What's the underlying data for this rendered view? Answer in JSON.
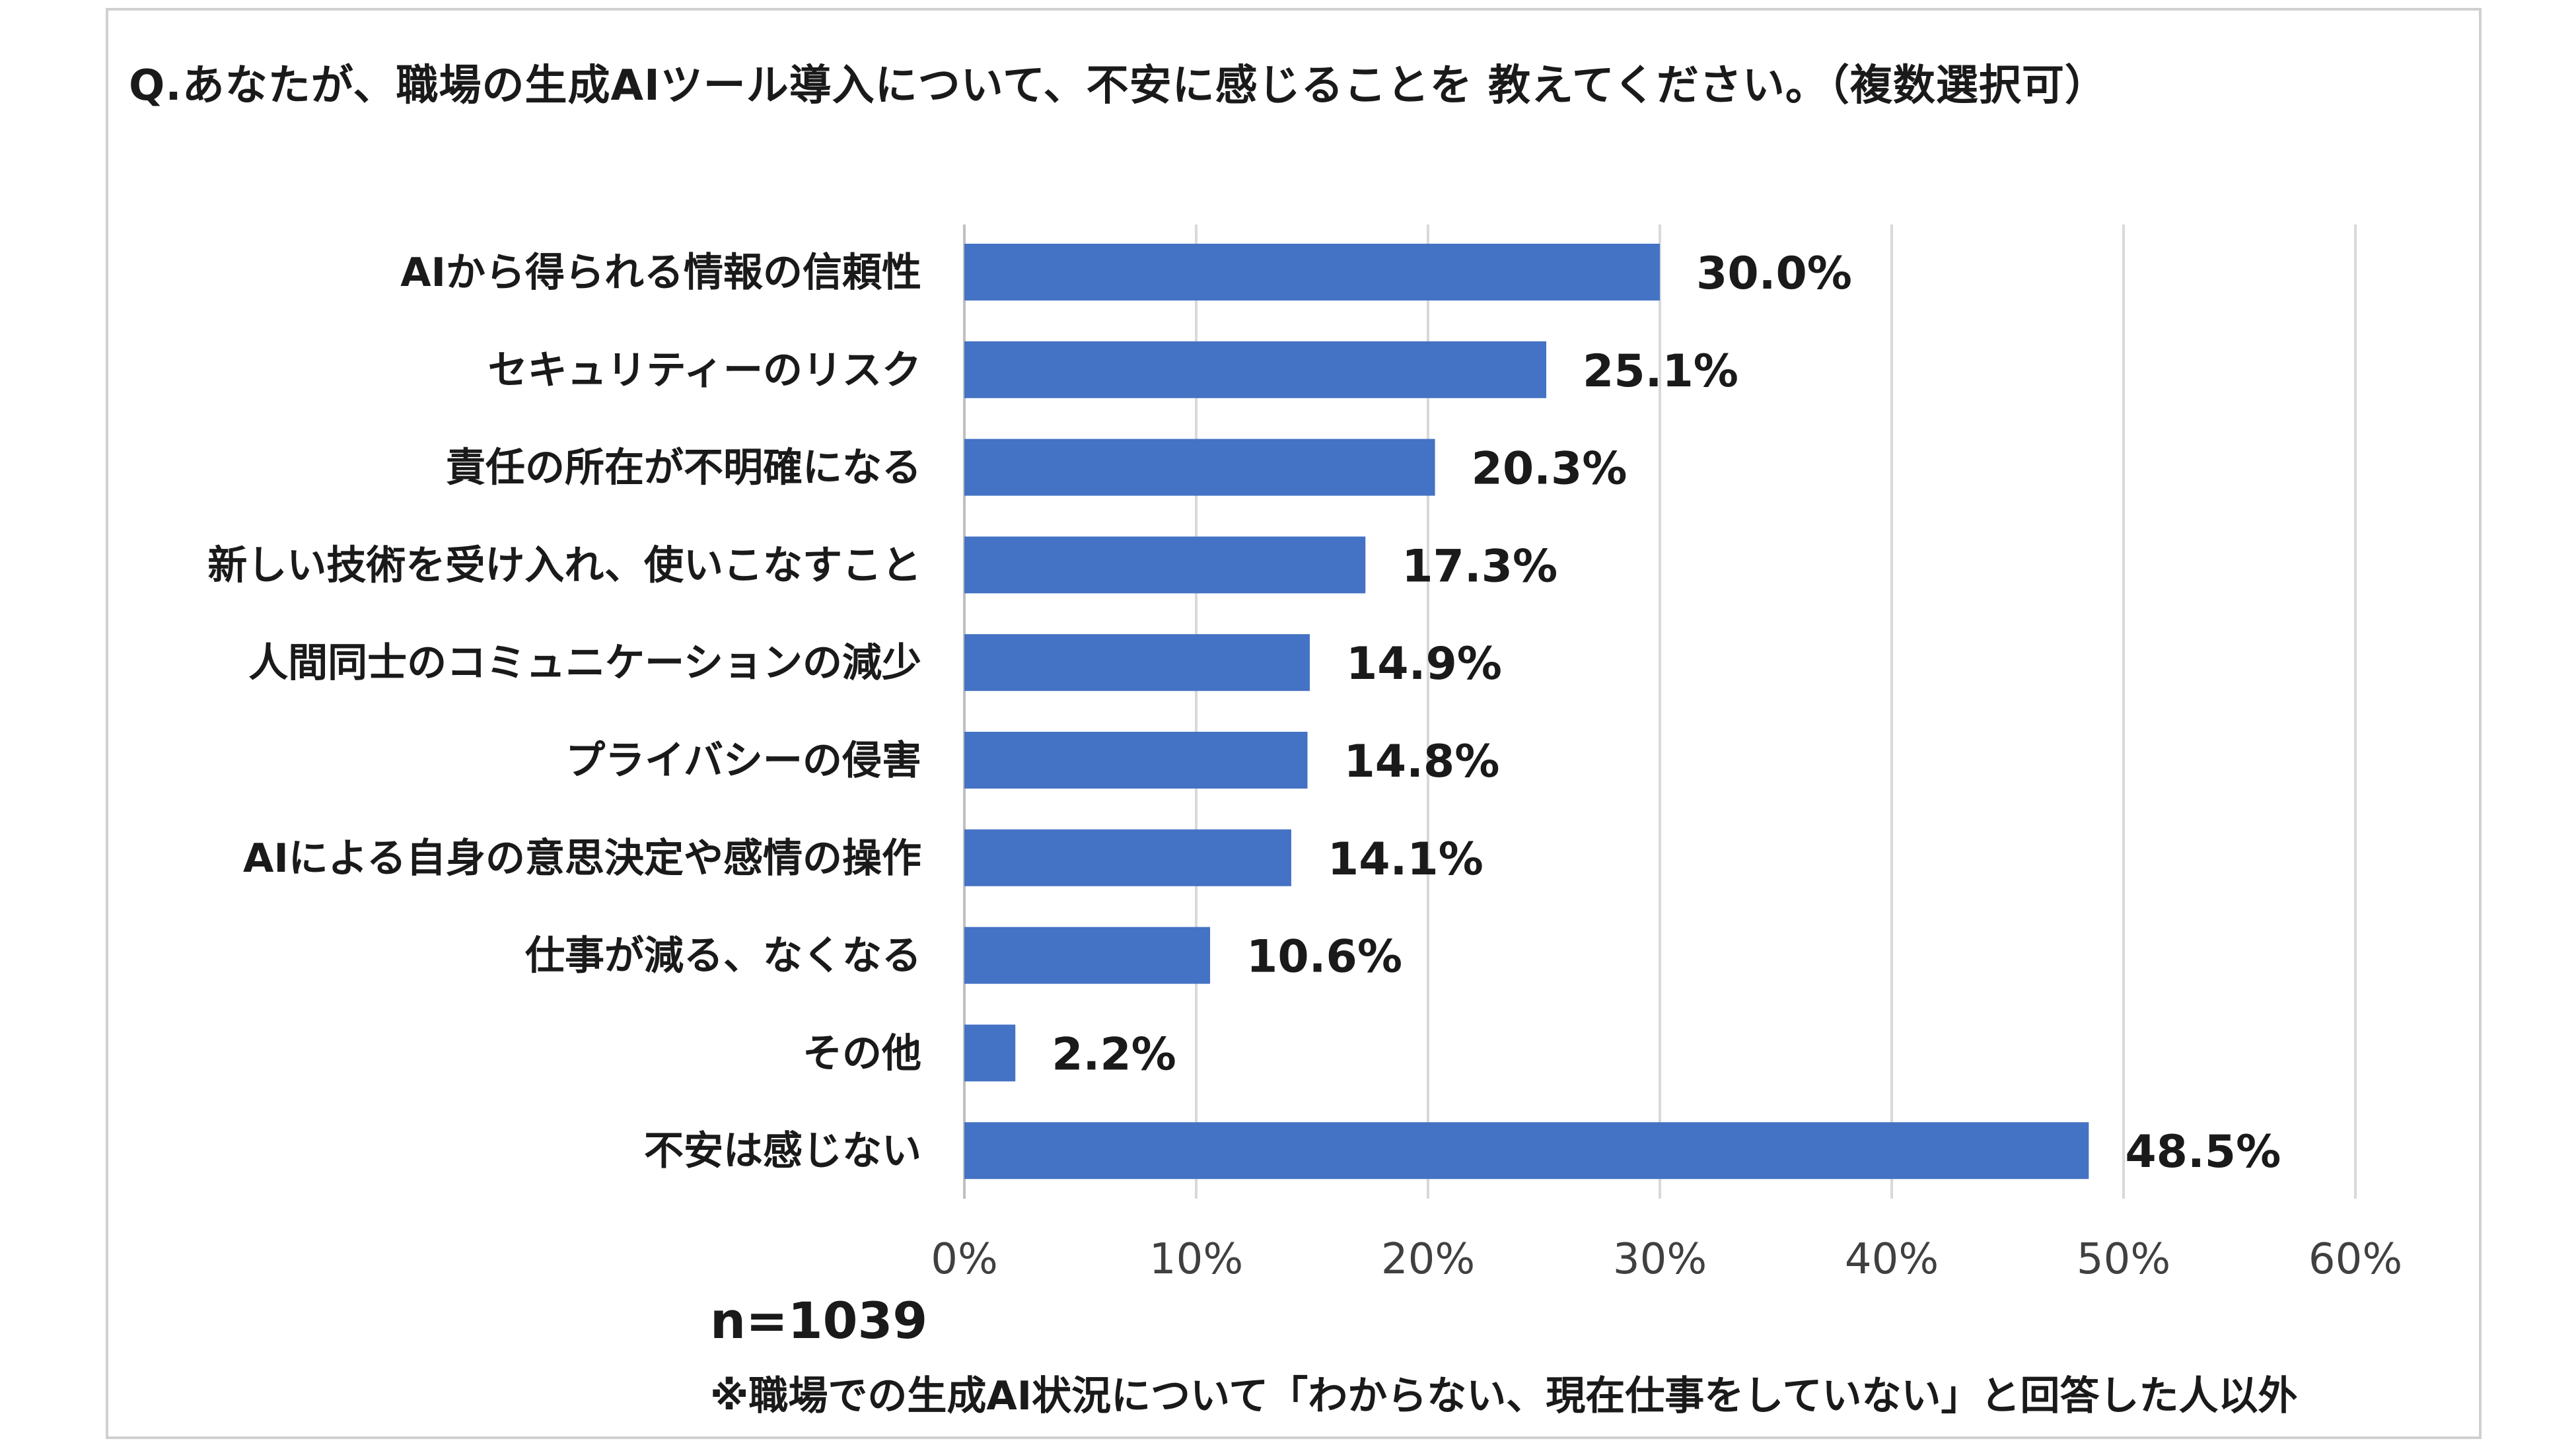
{
  "title": "Q.あなたが、職場の生成AIツール導入について、不安に感じることを 教えてください。（複数選択可）",
  "sample_size": "n=1039",
  "note": "※職場での生成AI状況について「わからない、現在仕事をしていない」と回答した人以外",
  "colors": {
    "bar": "#4472C4",
    "grid": "#d9d9d9",
    "axis": "#bfbfbf"
  },
  "chart_data": {
    "type": "bar",
    "orientation": "horizontal",
    "categories": [
      "AIから得られる情報の信頼性",
      "セキュリティーのリスク",
      "責任の所在が不明確になる",
      "新しい技術を受け入れ、使いこなすこと",
      "人間同士のコミュニケーションの減少",
      "プライバシーの侵害",
      "AIによる自身の意思決定や感情の操作",
      "仕事が減る、なくなる",
      "その他",
      "不安は感じない"
    ],
    "values": [
      30.0,
      25.1,
      20.3,
      17.3,
      14.9,
      14.8,
      14.1,
      10.6,
      2.2,
      48.5
    ],
    "value_labels": [
      "30.0%",
      "25.1%",
      "20.3%",
      "17.3%",
      "14.9%",
      "14.8%",
      "14.1%",
      "10.6%",
      "2.2%",
      "48.5%"
    ],
    "xlim": [
      0,
      60
    ],
    "ticks": [
      0,
      10,
      20,
      30,
      40,
      50,
      60
    ],
    "tick_labels": [
      "0%",
      "10%",
      "20%",
      "30%",
      "40%",
      "50%",
      "60%"
    ],
    "grid": true,
    "legend": "none"
  }
}
